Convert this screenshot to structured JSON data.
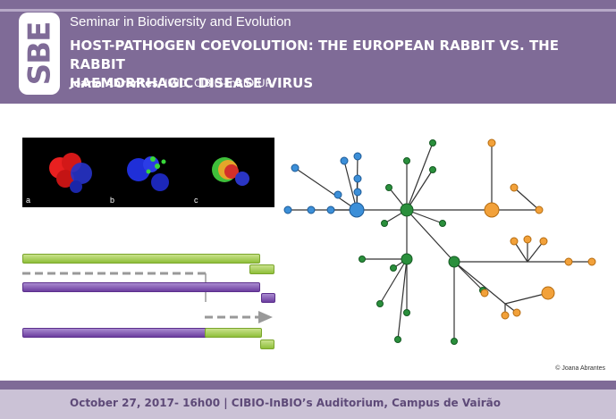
{
  "header": {
    "logo_text": "SBE",
    "series": "Seminar in Biodiversity and Evolution",
    "title_line1": "HOST-PATHOGEN COEVOLUTION: THE EUROPEAN RABBIT VS. THE RABBIT",
    "title_line2": "HAEMORRHAGIC DISEASE VIRUS",
    "author_name": "Joana Abrantes",
    "author_affiliation": ", IMID, CIBIO-InBIO/UP"
  },
  "images": {
    "labels": [
      "a",
      "b",
      "c"
    ]
  },
  "network_credit": "© Joana Abrantes",
  "footer": {
    "text": "October 27, 2017- 16h00 | CIBIO-InBIO’s Auditorium, Campus de Vairão"
  },
  "colors": {
    "header": "#7f6b97",
    "footer": "#cbc2d6",
    "node_blue": "#3c8fd8",
    "node_green": "#2a8f3c",
    "node_orange": "#f2a13a"
  }
}
